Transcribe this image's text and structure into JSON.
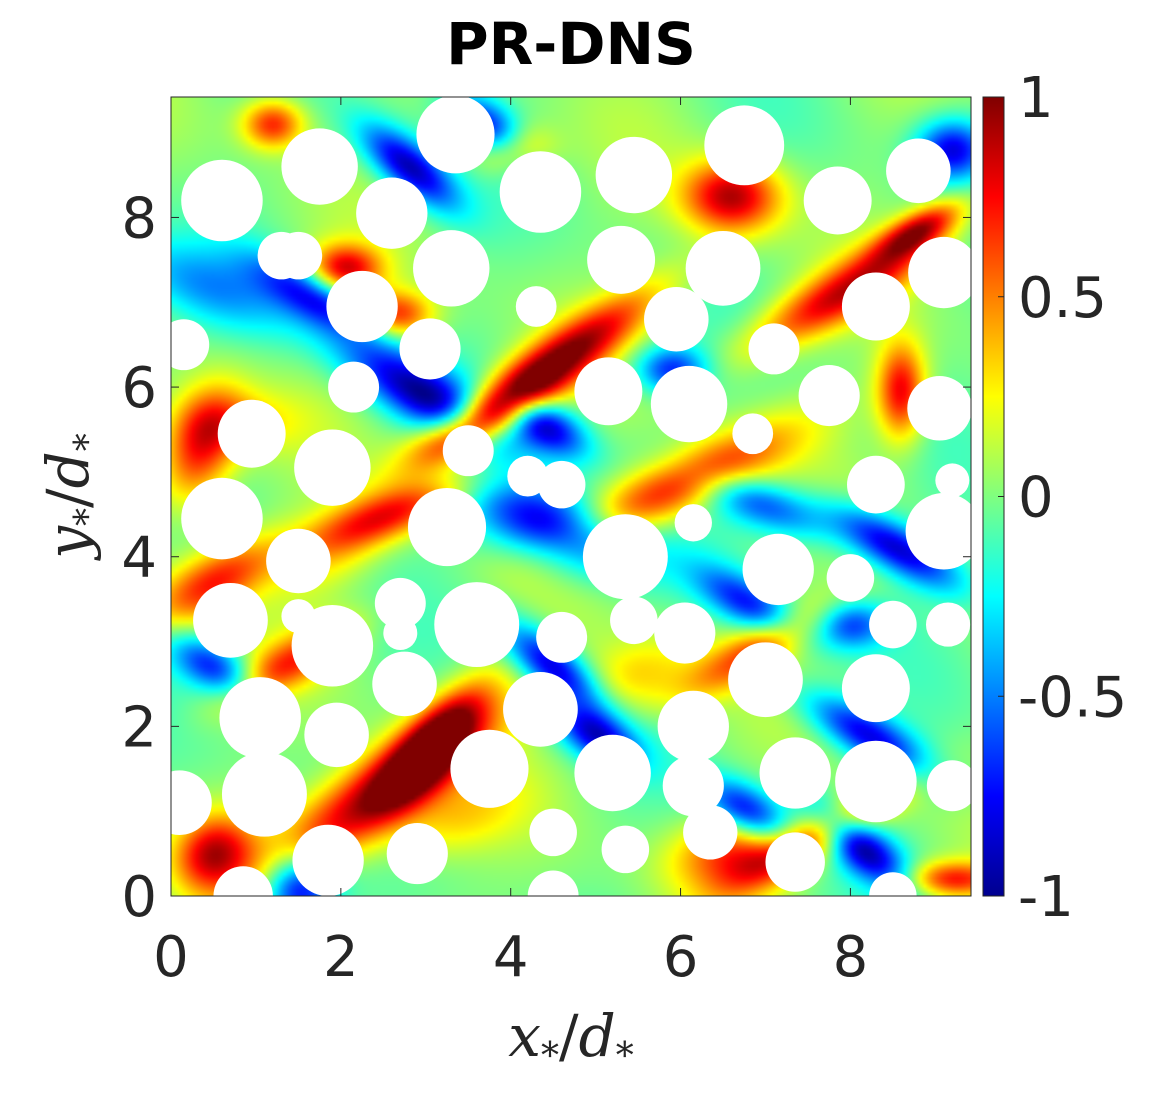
{
  "chart_data": {
    "type": "heatmap",
    "title": "PR-DNS",
    "xlabel": {
      "base": "x",
      "sub": "*",
      "slash": "/",
      "den": "d",
      "den_sub": "*"
    },
    "ylabel": {
      "base": "y",
      "sub": "*",
      "slash": "/",
      "den": "d",
      "den_sub": "*"
    },
    "xlim": [
      0,
      9.42
    ],
    "ylim": [
      0,
      9.42
    ],
    "xticks": [
      "0",
      "2",
      "4",
      "6",
      "8"
    ],
    "xtick_values": [
      0,
      2,
      4,
      6,
      8
    ],
    "yticks": [
      "0",
      "2",
      "4",
      "6",
      "8"
    ],
    "ytick_values": [
      0,
      2,
      4,
      6,
      8
    ],
    "colorbar": {
      "colormap": "jet",
      "clim": [
        -1,
        1
      ],
      "ticks": [
        "1",
        "0.5",
        "0",
        "-0.5",
        "-1"
      ],
      "tick_values": [
        1,
        0.5,
        0,
        -0.5,
        -1
      ]
    },
    "grid": false,
    "particles": [
      {
        "x": 0.6,
        "y": 8.2,
        "r": 0.48
      },
      {
        "x": 1.75,
        "y": 8.6,
        "r": 0.45
      },
      {
        "x": 2.6,
        "y": 8.05,
        "r": 0.42
      },
      {
        "x": 3.35,
        "y": 8.98,
        "r": 0.46
      },
      {
        "x": 4.35,
        "y": 8.3,
        "r": 0.48
      },
      {
        "x": 5.45,
        "y": 8.5,
        "r": 0.45
      },
      {
        "x": 6.75,
        "y": 8.85,
        "r": 0.47
      },
      {
        "x": 7.85,
        "y": 8.2,
        "r": 0.4
      },
      {
        "x": 8.8,
        "y": 8.55,
        "r": 0.38
      },
      {
        "x": 9.1,
        "y": 7.35,
        "r": 0.42
      },
      {
        "x": 6.5,
        "y": 7.4,
        "r": 0.44
      },
      {
        "x": 5.3,
        "y": 7.5,
        "r": 0.4
      },
      {
        "x": 3.3,
        "y": 7.4,
        "r": 0.45
      },
      {
        "x": 2.25,
        "y": 6.95,
        "r": 0.42
      },
      {
        "x": 1.3,
        "y": 7.55,
        "r": 0.28
      },
      {
        "x": 0.15,
        "y": 6.5,
        "r": 0.3
      },
      {
        "x": 4.3,
        "y": 6.95,
        "r": 0.24
      },
      {
        "x": 5.95,
        "y": 6.8,
        "r": 0.38
      },
      {
        "x": 7.1,
        "y": 6.45,
        "r": 0.3
      },
      {
        "x": 8.3,
        "y": 6.95,
        "r": 0.4
      },
      {
        "x": 2.15,
        "y": 6.0,
        "r": 0.3
      },
      {
        "x": 3.05,
        "y": 6.45,
        "r": 0.36
      },
      {
        "x": 0.95,
        "y": 5.45,
        "r": 0.4
      },
      {
        "x": 5.15,
        "y": 5.95,
        "r": 0.4
      },
      {
        "x": 6.1,
        "y": 5.8,
        "r": 0.45
      },
      {
        "x": 7.75,
        "y": 5.9,
        "r": 0.36
      },
      {
        "x": 9.05,
        "y": 5.75,
        "r": 0.38
      },
      {
        "x": 1.9,
        "y": 5.05,
        "r": 0.45
      },
      {
        "x": 3.5,
        "y": 5.25,
        "r": 0.3
      },
      {
        "x": 4.2,
        "y": 4.95,
        "r": 0.24
      },
      {
        "x": 6.85,
        "y": 5.45,
        "r": 0.24
      },
      {
        "x": 0.6,
        "y": 4.45,
        "r": 0.48
      },
      {
        "x": 4.6,
        "y": 4.85,
        "r": 0.28
      },
      {
        "x": 8.3,
        "y": 4.85,
        "r": 0.34
      },
      {
        "x": 9.2,
        "y": 4.9,
        "r": 0.2
      },
      {
        "x": 1.5,
        "y": 3.95,
        "r": 0.38
      },
      {
        "x": 3.25,
        "y": 4.35,
        "r": 0.46
      },
      {
        "x": 5.35,
        "y": 4.0,
        "r": 0.5
      },
      {
        "x": 6.15,
        "y": 4.4,
        "r": 0.22
      },
      {
        "x": 7.15,
        "y": 3.85,
        "r": 0.42
      },
      {
        "x": 8.0,
        "y": 3.75,
        "r": 0.28
      },
      {
        "x": 9.1,
        "y": 4.3,
        "r": 0.45
      },
      {
        "x": 0.7,
        "y": 3.25,
        "r": 0.44
      },
      {
        "x": 1.5,
        "y": 3.3,
        "r": 0.2
      },
      {
        "x": 2.7,
        "y": 3.45,
        "r": 0.3
      },
      {
        "x": 1.9,
        "y": 2.95,
        "r": 0.48
      },
      {
        "x": 2.7,
        "y": 3.1,
        "r": 0.2
      },
      {
        "x": 3.6,
        "y": 3.2,
        "r": 0.5
      },
      {
        "x": 4.6,
        "y": 3.05,
        "r": 0.3
      },
      {
        "x": 5.45,
        "y": 3.25,
        "r": 0.28
      },
      {
        "x": 6.05,
        "y": 3.1,
        "r": 0.36
      },
      {
        "x": 8.5,
        "y": 3.2,
        "r": 0.28
      },
      {
        "x": 9.15,
        "y": 3.2,
        "r": 0.26
      },
      {
        "x": 2.75,
        "y": 2.5,
        "r": 0.38
      },
      {
        "x": 7.0,
        "y": 2.55,
        "r": 0.44
      },
      {
        "x": 8.3,
        "y": 2.45,
        "r": 0.4
      },
      {
        "x": 1.05,
        "y": 2.1,
        "r": 0.48
      },
      {
        "x": 4.35,
        "y": 2.2,
        "r": 0.44
      },
      {
        "x": 6.15,
        "y": 2.0,
        "r": 0.42
      },
      {
        "x": 1.95,
        "y": 1.9,
        "r": 0.38
      },
      {
        "x": 3.75,
        "y": 1.5,
        "r": 0.46
      },
      {
        "x": 5.2,
        "y": 1.45,
        "r": 0.45
      },
      {
        "x": 6.15,
        "y": 1.3,
        "r": 0.36
      },
      {
        "x": 7.35,
        "y": 1.45,
        "r": 0.42
      },
      {
        "x": 8.3,
        "y": 1.35,
        "r": 0.48
      },
      {
        "x": 9.2,
        "y": 1.3,
        "r": 0.3
      },
      {
        "x": 1.1,
        "y": 1.2,
        "r": 0.5
      },
      {
        "x": 0.1,
        "y": 1.1,
        "r": 0.38
      },
      {
        "x": 4.5,
        "y": 0.75,
        "r": 0.28
      },
      {
        "x": 6.35,
        "y": 0.75,
        "r": 0.32
      },
      {
        "x": 1.85,
        "y": 0.42,
        "r": 0.42
      },
      {
        "x": 2.9,
        "y": 0.5,
        "r": 0.36
      },
      {
        "x": 5.35,
        "y": 0.55,
        "r": 0.28
      },
      {
        "x": 7.35,
        "y": 0.4,
        "r": 0.35
      },
      {
        "x": 0.85,
        "y": 0.0,
        "r": 0.35
      },
      {
        "x": 4.5,
        "y": 0.0,
        "r": 0.3
      },
      {
        "x": 8.5,
        "y": 0.0,
        "r": 0.28
      },
      {
        "x": 1.5,
        "y": 7.55,
        "r": 0.28
      }
    ],
    "field_blobs": [
      {
        "x": 4.4,
        "y": 6.2,
        "sx": 1.1,
        "sy": 0.22,
        "ang": 35,
        "v": 1.0
      },
      {
        "x": 2.5,
        "y": 1.25,
        "sx": 1.1,
        "sy": 0.3,
        "ang": 35,
        "v": 1.0
      },
      {
        "x": 3.1,
        "y": 1.8,
        "sx": 0.6,
        "sy": 0.22,
        "ang": 50,
        "v": 0.9
      },
      {
        "x": 6.0,
        "y": 4.85,
        "sx": 1.0,
        "sy": 0.25,
        "ang": 25,
        "v": 0.8
      },
      {
        "x": 6.6,
        "y": 8.25,
        "sx": 0.4,
        "sy": 0.3,
        "ang": 0,
        "v": 0.9
      },
      {
        "x": 7.9,
        "y": 7.1,
        "sx": 0.9,
        "sy": 0.22,
        "ang": 30,
        "v": 0.8
      },
      {
        "x": 0.5,
        "y": 3.7,
        "sx": 0.6,
        "sy": 0.25,
        "ang": 30,
        "v": 0.7
      },
      {
        "x": 0.35,
        "y": 5.3,
        "sx": 0.5,
        "sy": 0.3,
        "ang": 70,
        "v": 0.8
      },
      {
        "x": 2.6,
        "y": 4.5,
        "sx": 0.7,
        "sy": 0.2,
        "ang": 20,
        "v": 0.7
      },
      {
        "x": 3.7,
        "y": 5.6,
        "sx": 0.6,
        "sy": 0.2,
        "ang": 30,
        "v": 0.7
      },
      {
        "x": 1.4,
        "y": 2.75,
        "sx": 0.6,
        "sy": 0.2,
        "ang": 30,
        "v": 0.6
      },
      {
        "x": 6.9,
        "y": 2.9,
        "sx": 0.7,
        "sy": 0.2,
        "ang": 30,
        "v": 0.6
      },
      {
        "x": 7.6,
        "y": 0.7,
        "sx": 0.8,
        "sy": 0.2,
        "ang": 30,
        "v": 0.7
      },
      {
        "x": 6.6,
        "y": 0.5,
        "sx": 0.5,
        "sy": 0.3,
        "ang": 10,
        "v": 0.6
      },
      {
        "x": 2.05,
        "y": 7.4,
        "sx": 0.3,
        "sy": 0.2,
        "ang": 0,
        "v": 0.8
      },
      {
        "x": 2.65,
        "y": 6.85,
        "sx": 0.3,
        "sy": 0.2,
        "ang": 0,
        "v": 0.7
      },
      {
        "x": 8.8,
        "y": 7.85,
        "sx": 0.4,
        "sy": 0.15,
        "ang": 30,
        "v": 0.8
      },
      {
        "x": 8.6,
        "y": 5.95,
        "sx": 0.2,
        "sy": 0.4,
        "ang": 0,
        "v": 0.8
      },
      {
        "x": 0.5,
        "y": 0.5,
        "sx": 0.35,
        "sy": 0.3,
        "ang": 40,
        "v": 0.8
      },
      {
        "x": 9.2,
        "y": 0.2,
        "sx": 0.4,
        "sy": 0.15,
        "ang": 0,
        "v": 0.7
      },
      {
        "x": 4.0,
        "y": 8.8,
        "sx": 0.3,
        "sy": 0.2,
        "ang": 0,
        "v": 0.7
      },
      {
        "x": 1.2,
        "y": 9.1,
        "sx": 0.25,
        "sy": 0.2,
        "ang": 0,
        "v": 0.7
      },
      {
        "x": 4.5,
        "y": 4.35,
        "sx": 0.7,
        "sy": 0.3,
        "ang": -20,
        "v": -0.95
      },
      {
        "x": 3.0,
        "y": 5.9,
        "sx": 0.8,
        "sy": 0.25,
        "ang": -30,
        "v": -0.9
      },
      {
        "x": 4.4,
        "y": 5.55,
        "sx": 0.4,
        "sy": 0.2,
        "ang": -30,
        "v": -0.85
      },
      {
        "x": 1.7,
        "y": 7.05,
        "sx": 0.6,
        "sy": 0.2,
        "ang": -30,
        "v": -0.7
      },
      {
        "x": 8.2,
        "y": 1.9,
        "sx": 0.6,
        "sy": 0.2,
        "ang": -30,
        "v": -0.8
      },
      {
        "x": 8.1,
        "y": 0.6,
        "sx": 0.5,
        "sy": 0.2,
        "ang": -40,
        "v": -0.9
      },
      {
        "x": 8.55,
        "y": 4.1,
        "sx": 0.6,
        "sy": 0.2,
        "ang": -30,
        "v": -0.85
      },
      {
        "x": 2.8,
        "y": 8.6,
        "sx": 0.5,
        "sy": 0.2,
        "ang": -40,
        "v": -0.9
      },
      {
        "x": 3.8,
        "y": 9.0,
        "sx": 0.4,
        "sy": 0.2,
        "ang": -40,
        "v": -0.8
      },
      {
        "x": 4.5,
        "y": 2.7,
        "sx": 0.5,
        "sy": 0.2,
        "ang": -40,
        "v": -0.9
      },
      {
        "x": 5.0,
        "y": 1.9,
        "sx": 0.4,
        "sy": 0.2,
        "ang": -30,
        "v": -0.8
      },
      {
        "x": 6.8,
        "y": 1.0,
        "sx": 0.4,
        "sy": 0.2,
        "ang": -30,
        "v": -0.8
      },
      {
        "x": 9.2,
        "y": 8.8,
        "sx": 0.3,
        "sy": 0.25,
        "ang": 0,
        "v": -0.8
      },
      {
        "x": 7.0,
        "y": 4.6,
        "sx": 0.6,
        "sy": 0.2,
        "ang": -20,
        "v": -0.6
      },
      {
        "x": 1.5,
        "y": 0.1,
        "sx": 0.3,
        "sy": 0.3,
        "ang": 0,
        "v": -0.9
      },
      {
        "x": 6.8,
        "y": 3.45,
        "sx": 0.5,
        "sy": 0.2,
        "ang": -30,
        "v": -0.7
      },
      {
        "x": 0.4,
        "y": 7.2,
        "sx": 0.8,
        "sy": 0.3,
        "ang": -20,
        "v": -0.4
      },
      {
        "x": 5.9,
        "y": 6.2,
        "sx": 0.3,
        "sy": 0.2,
        "ang": 0,
        "v": -0.7
      },
      {
        "x": 8.0,
        "y": 3.2,
        "sx": 0.3,
        "sy": 0.2,
        "ang": 0,
        "v": -0.6
      },
      {
        "x": 0.5,
        "y": 2.7,
        "sx": 0.4,
        "sy": 0.2,
        "ang": -30,
        "v": -0.7
      },
      {
        "x": 0.8,
        "y": 5.6,
        "sx": 0.5,
        "sy": 0.25,
        "ang": 0,
        "v": 0.3
      },
      {
        "x": 5.5,
        "y": 2.6,
        "sx": 0.5,
        "sy": 0.3,
        "ang": 20,
        "v": 0.35
      },
      {
        "x": 3.3,
        "y": 0.9,
        "sx": 0.6,
        "sy": 0.3,
        "ang": 20,
        "v": 0.3
      },
      {
        "x": 1.9,
        "y": 4.0,
        "sx": 0.5,
        "sy": 0.3,
        "ang": 30,
        "v": 0.25
      }
    ]
  }
}
